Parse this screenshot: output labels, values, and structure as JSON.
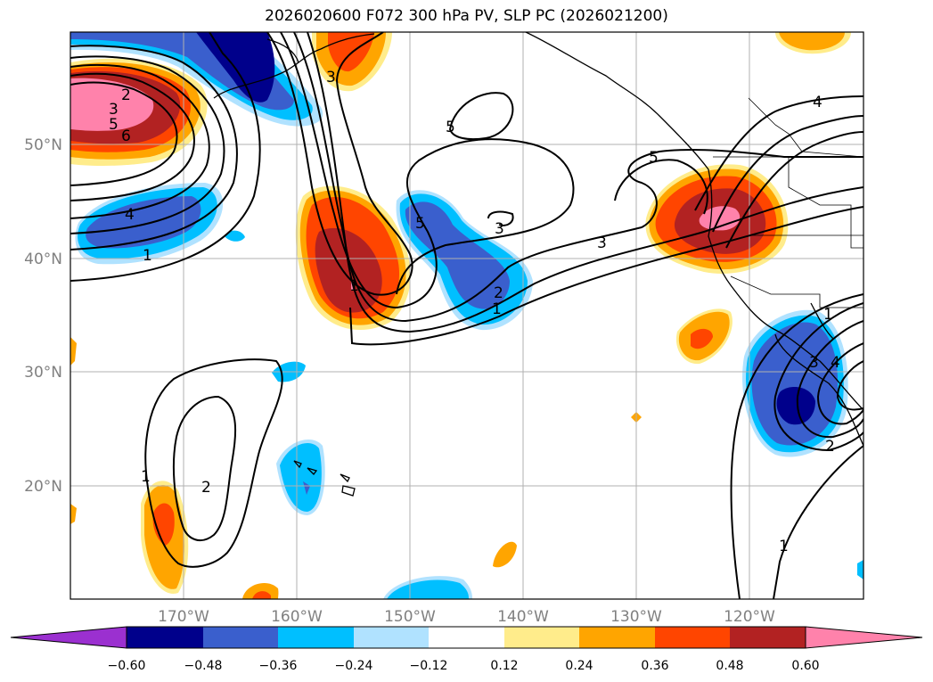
{
  "title": "2026020600 F072 300 hPa PV, SLP PC (2026021200)",
  "lat_labels": [
    "50°N",
    "40°N",
    "30°N",
    "20°N"
  ],
  "lon_labels": [
    "170°W",
    "160°W",
    "150°W",
    "140°W",
    "130°W",
    "120°W"
  ],
  "colorbar": {
    "ticks": [
      "−0.60",
      "−0.48",
      "−0.36",
      "−0.24",
      "−0.12",
      "0.12",
      "0.24",
      "0.36",
      "0.48",
      "0.60"
    ],
    "colors": [
      "#9b30d0",
      "#00008b",
      "#3a5fcd",
      "#00bfff",
      "#b0e2ff",
      "#ffffff",
      "#ffec8b",
      "#ffa500",
      "#ff4500",
      "#b22222",
      "#ff82ab"
    ]
  },
  "contour_labels": [
    "2",
    "3",
    "5",
    "6",
    "4",
    "1",
    "5",
    "3",
    "5",
    "3",
    "2",
    "1",
    "4",
    "5",
    "3",
    "2",
    "1",
    "3",
    "4",
    "1",
    "2",
    "1",
    "1"
  ],
  "colors": {
    "neg_deep": "#00008b",
    "neg_mid": "#3a5fcd",
    "neg_light": "#00bfff",
    "neg_pale": "#b0e2ff",
    "pos_pale": "#ffec8b",
    "pos_light": "#ffa500",
    "pos_mid": "#ff4500",
    "pos_deep": "#b22222",
    "pos_max": "#ff82ab"
  }
}
